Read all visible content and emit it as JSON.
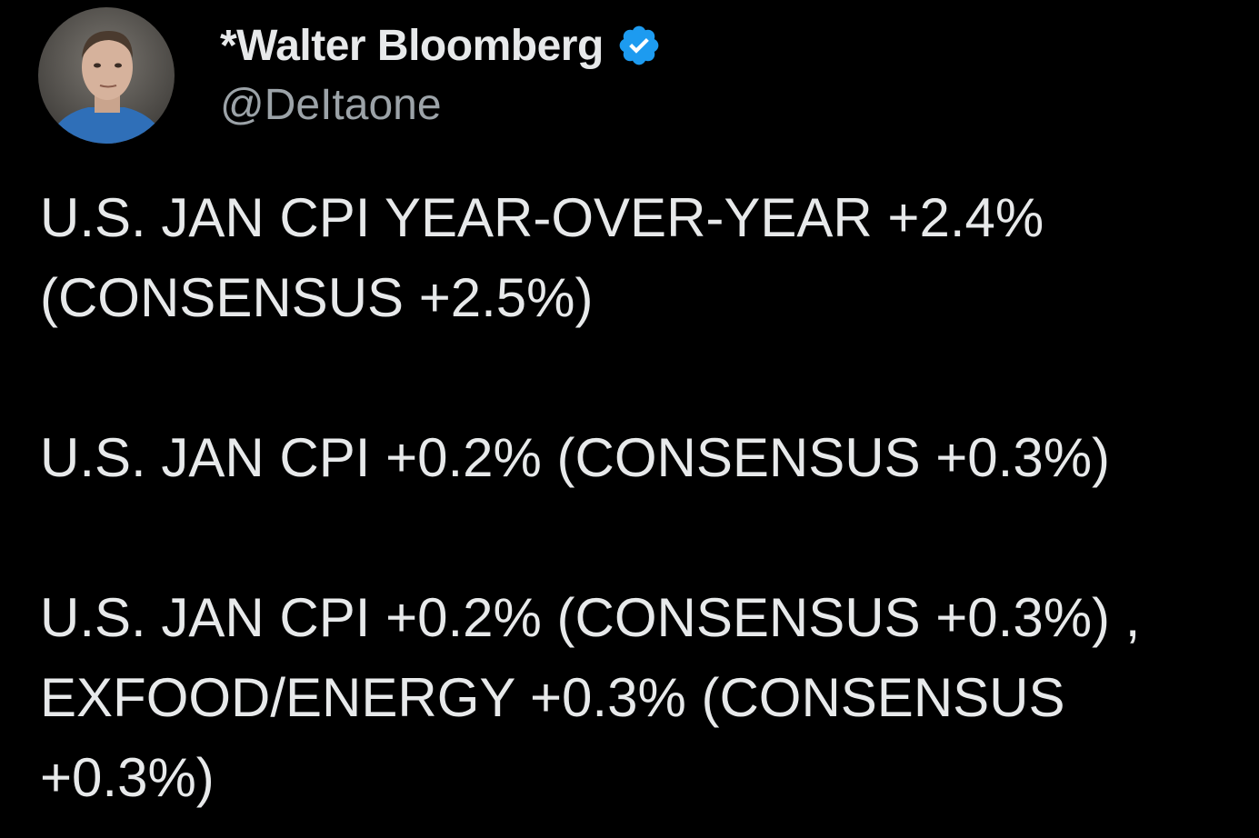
{
  "author": {
    "display_name": "*Walter Bloomberg",
    "handle": "@DeItaone",
    "verified": true,
    "verified_icon": "verified-badge-icon",
    "verified_color": "#1d9bf0"
  },
  "tweet": {
    "paragraphs": [
      {
        "lines": [
          "U.S. JAN CPI YEAR-OVER-YEAR +2.4%",
          "(CONSENSUS +2.5%)"
        ]
      },
      {
        "lines": [
          "U.S. JAN CPI +0.2% (CONSENSUS +0.3%)"
        ]
      },
      {
        "lines": [
          "U.S. JAN CPI +0.2% (CONSENSUS +0.3%) ,",
          "EXFOOD/ENERGY +0.3% (CONSENSUS",
          "+0.3%)"
        ]
      }
    ]
  },
  "colors": {
    "background": "#000000",
    "text_primary": "#e7e9ea",
    "text_secondary": "#9ca3a8"
  }
}
